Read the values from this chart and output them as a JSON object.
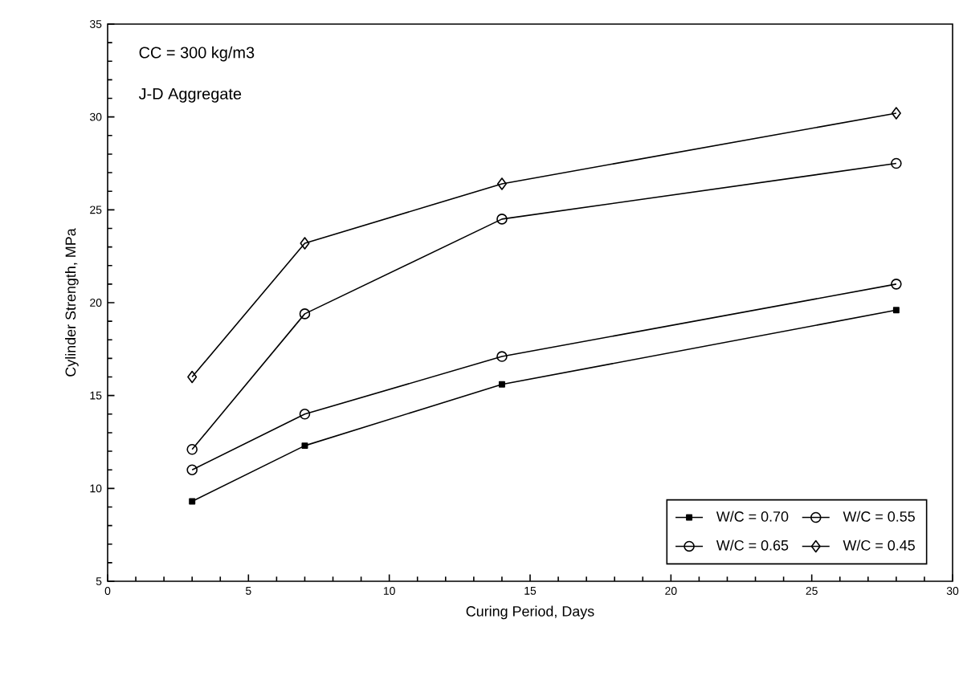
{
  "chart_data": {
    "type": "line",
    "xlabel": "Curing Period, Days",
    "ylabel": "Cylinder Strength, MPa",
    "annotations": [
      "CC = 300 kg/m3",
      "J-D Aggregate"
    ],
    "x": [
      3,
      7,
      14,
      28
    ],
    "series": [
      {
        "name": "W/C = 0.70",
        "color": "#000000",
        "marker": "square",
        "values": [
          9.3,
          12.3,
          15.6,
          19.6
        ]
      },
      {
        "name": "W/C = 0.55",
        "color": "#000000",
        "marker": "circle",
        "values": [
          12.1,
          19.4,
          24.5,
          27.5
        ]
      },
      {
        "name": "W/C = 0.65",
        "color": "#000000",
        "marker": "circle",
        "values": [
          11.0,
          14.0,
          17.1,
          21.0
        ]
      },
      {
        "name": "W/C = 0.45",
        "color": "#000000",
        "marker": "diamond",
        "values": [
          16.0,
          23.2,
          26.4,
          30.2
        ]
      }
    ],
    "xlim": [
      0,
      30
    ],
    "xticks": [
      0,
      5,
      10,
      15,
      20,
      25,
      30
    ],
    "ylim": [
      5,
      35
    ],
    "yticks": [
      5,
      10,
      15,
      20,
      25,
      30,
      35
    ],
    "grid": false,
    "legend": "bottom right",
    "line_style": "solid"
  }
}
